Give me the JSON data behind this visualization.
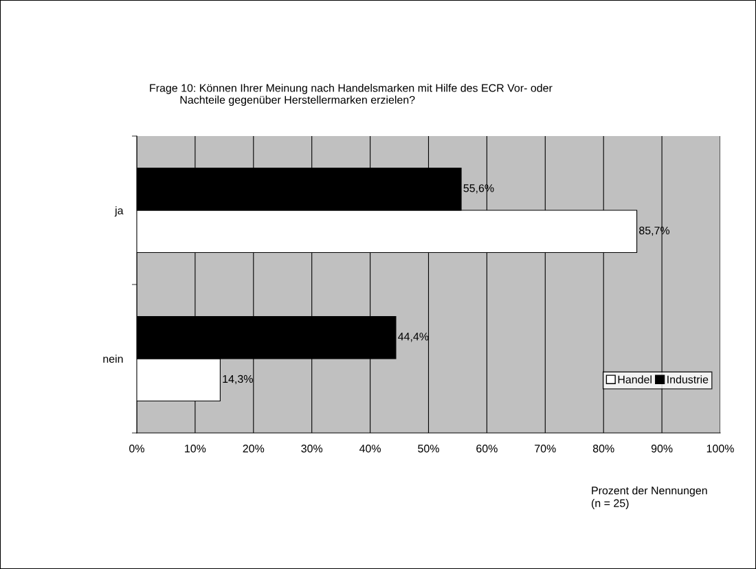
{
  "chart_data": {
    "type": "bar",
    "orientation": "horizontal",
    "title": "Frage 10: Können Ihrer Meinung nach Handelsmarken mit Hilfe des ECR Vor- oder\n          Nachteile gegenüber Herstellermarken erzielen?",
    "xlabel": "Prozent der Nennungen\n(n = 25)",
    "categories": [
      "ja",
      "nein"
    ],
    "series": [
      {
        "name": "Handel",
        "color": "#ffffff",
        "values": [
          85.7,
          14.3
        ],
        "value_labels": [
          "85,7%",
          "14,3%"
        ]
      },
      {
        "name": "Industrie",
        "color": "#000000",
        "values": [
          55.6,
          44.4
        ],
        "value_labels": [
          "55,6%",
          "44,4%"
        ]
      }
    ],
    "xlim": [
      0,
      100
    ],
    "xticks": [
      {
        "value": 0,
        "label": "0%"
      },
      {
        "value": 10,
        "label": "10%"
      },
      {
        "value": 20,
        "label": "20%"
      },
      {
        "value": 30,
        "label": "30%"
      },
      {
        "value": 40,
        "label": "40%"
      },
      {
        "value": 50,
        "label": "50%"
      },
      {
        "value": 60,
        "label": "60%"
      },
      {
        "value": 70,
        "label": "70%"
      },
      {
        "value": 80,
        "label": "80%"
      },
      {
        "value": 90,
        "label": "90%"
      },
      {
        "value": 100,
        "label": "100%"
      }
    ],
    "grid": "x",
    "legend": "bottom right"
  }
}
